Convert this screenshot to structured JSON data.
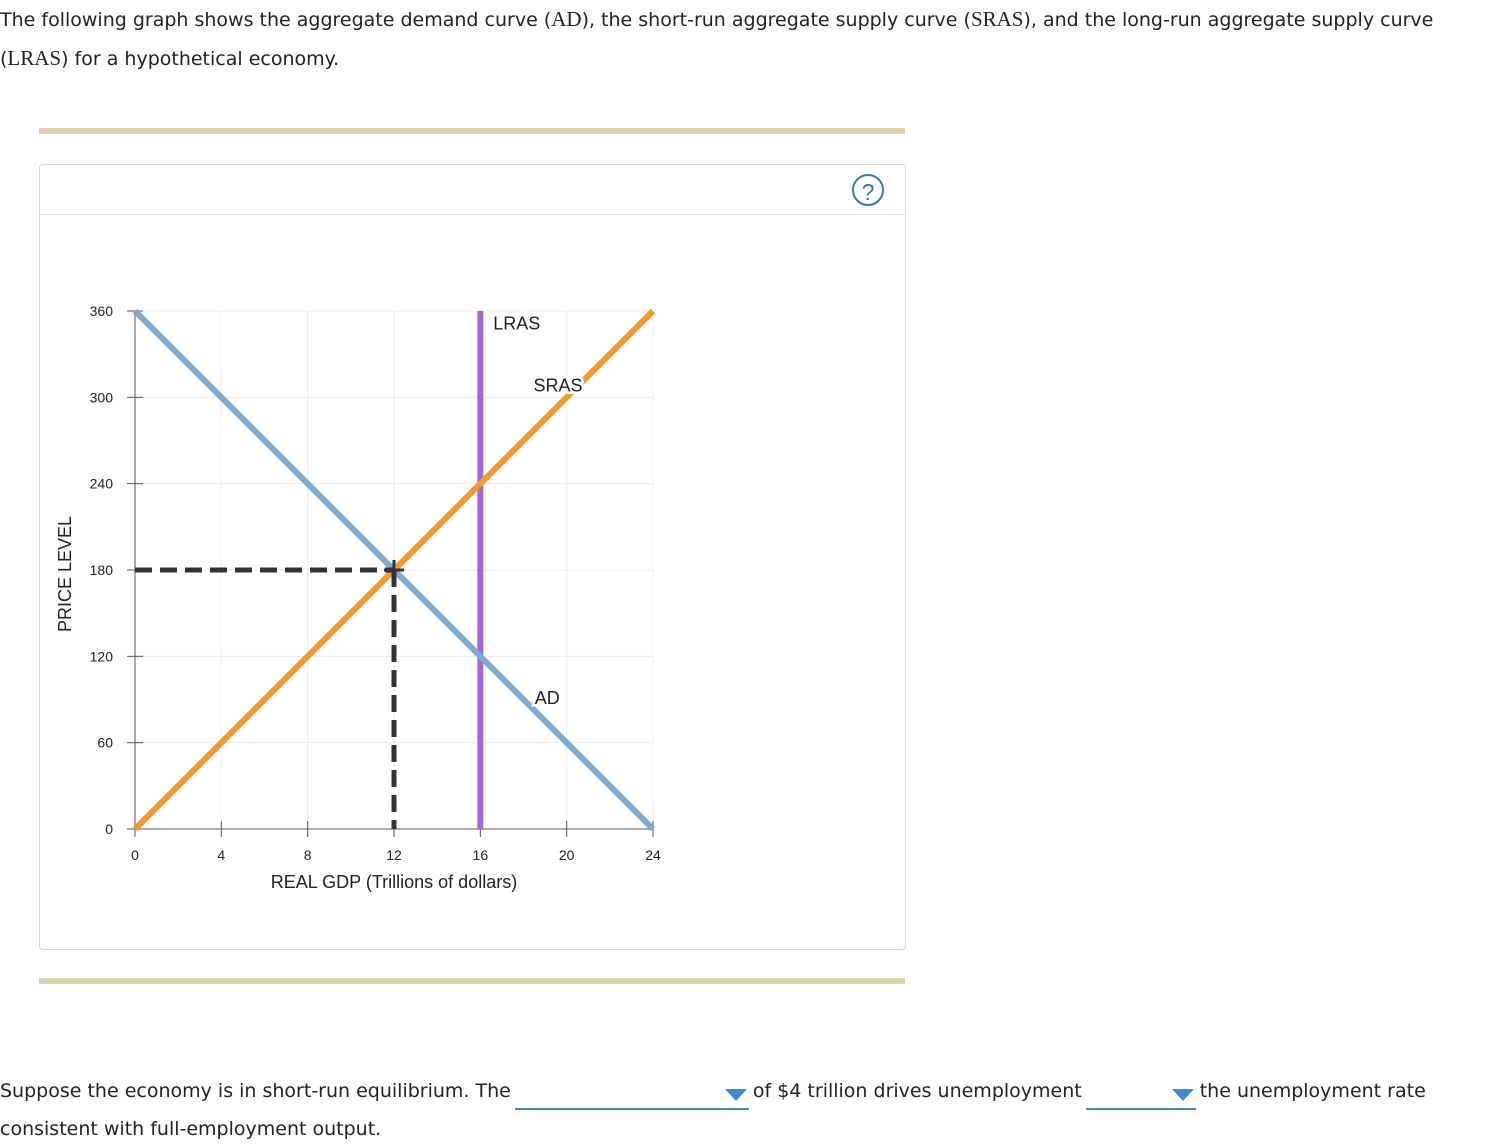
{
  "intro": {
    "part1": "The following graph shows the aggregate demand curve (",
    "ad": "AD",
    "part2": "), the short-run aggregate supply curve (",
    "sras": "SRAS",
    "part3": "), and the long-run aggregate supply curve (",
    "lras": "LRAS",
    "part4": ") for a hypothetical economy."
  },
  "help_icon": "question-circle-icon",
  "help_symbol": "?",
  "chart_data": {
    "type": "line",
    "xlabel": "REAL GDP (Trillions of dollars)",
    "ylabel": "PRICE LEVEL",
    "xlim": [
      0,
      24
    ],
    "ylim": [
      0,
      360
    ],
    "xticks": [
      0,
      4,
      8,
      12,
      16,
      20,
      24
    ],
    "yticks": [
      0,
      60,
      120,
      180,
      240,
      300,
      360
    ],
    "grid": true,
    "series": [
      {
        "name": "AD",
        "color": "#7eaad1",
        "points": [
          [
            0,
            360
          ],
          [
            24,
            0
          ]
        ]
      },
      {
        "name": "SRAS",
        "color": "#f7982a",
        "points": [
          [
            0,
            0
          ],
          [
            24,
            360
          ]
        ]
      },
      {
        "name": "LRAS",
        "color": "#a566d6",
        "points": [
          [
            16,
            0
          ],
          [
            16,
            360
          ]
        ]
      }
    ],
    "equilibrium": {
      "x": 12,
      "y": 180,
      "color": "#333333"
    }
  },
  "question": {
    "part1": "Suppose the economy is in short-run equilibrium. The",
    "part2": "of $4 trillion drives unemployment",
    "part3": "the unemployment rate consistent with full-employment output.",
    "dropdown1": "",
    "dropdown2": ""
  }
}
